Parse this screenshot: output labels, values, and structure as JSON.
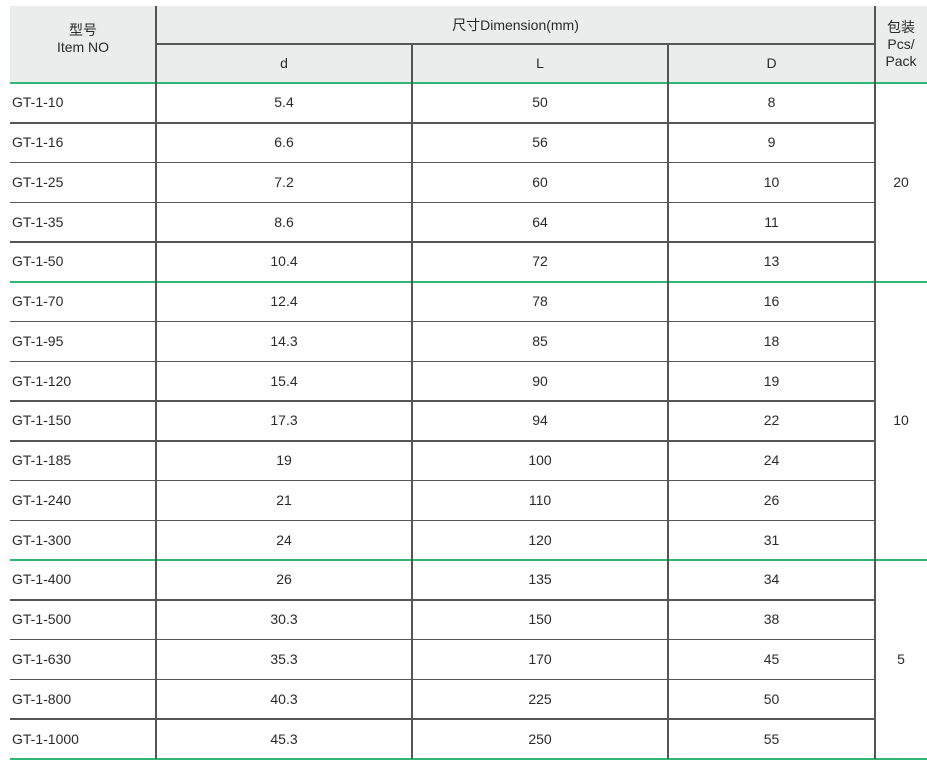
{
  "header": {
    "item_cn": "型号",
    "item_en": "Item NO",
    "dimension": "尺寸Dimension(mm)",
    "d": "d",
    "L": "L",
    "D": "D",
    "pack_cn": "包装",
    "pack_en1": "Pcs/",
    "pack_en2": "Pack"
  },
  "rows": [
    [
      "GT-1-10",
      "5.4",
      "50",
      "8"
    ],
    [
      "GT-1-16",
      "6.6",
      "56",
      "9"
    ],
    [
      "GT-1-25",
      "7.2",
      "60",
      "10"
    ],
    [
      "GT-1-35",
      "8.6",
      "64",
      "11"
    ],
    [
      "GT-1-50",
      "10.4",
      "72",
      "13"
    ],
    [
      "GT-1-70",
      "12.4",
      "78",
      "16"
    ],
    [
      "GT-1-95",
      "14.3",
      "85",
      "18"
    ],
    [
      "GT-1-120",
      "15.4",
      "90",
      "19"
    ],
    [
      "GT-1-150",
      "17.3",
      "94",
      "22"
    ],
    [
      "GT-1-185",
      "19",
      "100",
      "24"
    ],
    [
      "GT-1-240",
      "21",
      "110",
      "26"
    ],
    [
      "GT-1-300",
      "24",
      "120",
      "31"
    ],
    [
      "GT-1-400",
      "26",
      "135",
      "34"
    ],
    [
      "GT-1-500",
      "30.3",
      "150",
      "38"
    ],
    [
      "GT-1-630",
      "35.3",
      "170",
      "45"
    ],
    [
      "GT-1-800",
      "40.3",
      "225",
      "50"
    ],
    [
      "GT-1-1000",
      "45.3",
      "250",
      "55"
    ]
  ],
  "groups": [
    {
      "pack": "20",
      "rows": 5
    },
    {
      "pack": "10",
      "rows": 7
    },
    {
      "pack": "5",
      "rows": 5
    }
  ],
  "colors": {
    "green_rule": "#2fb774",
    "header_bg": "#ebeded"
  }
}
